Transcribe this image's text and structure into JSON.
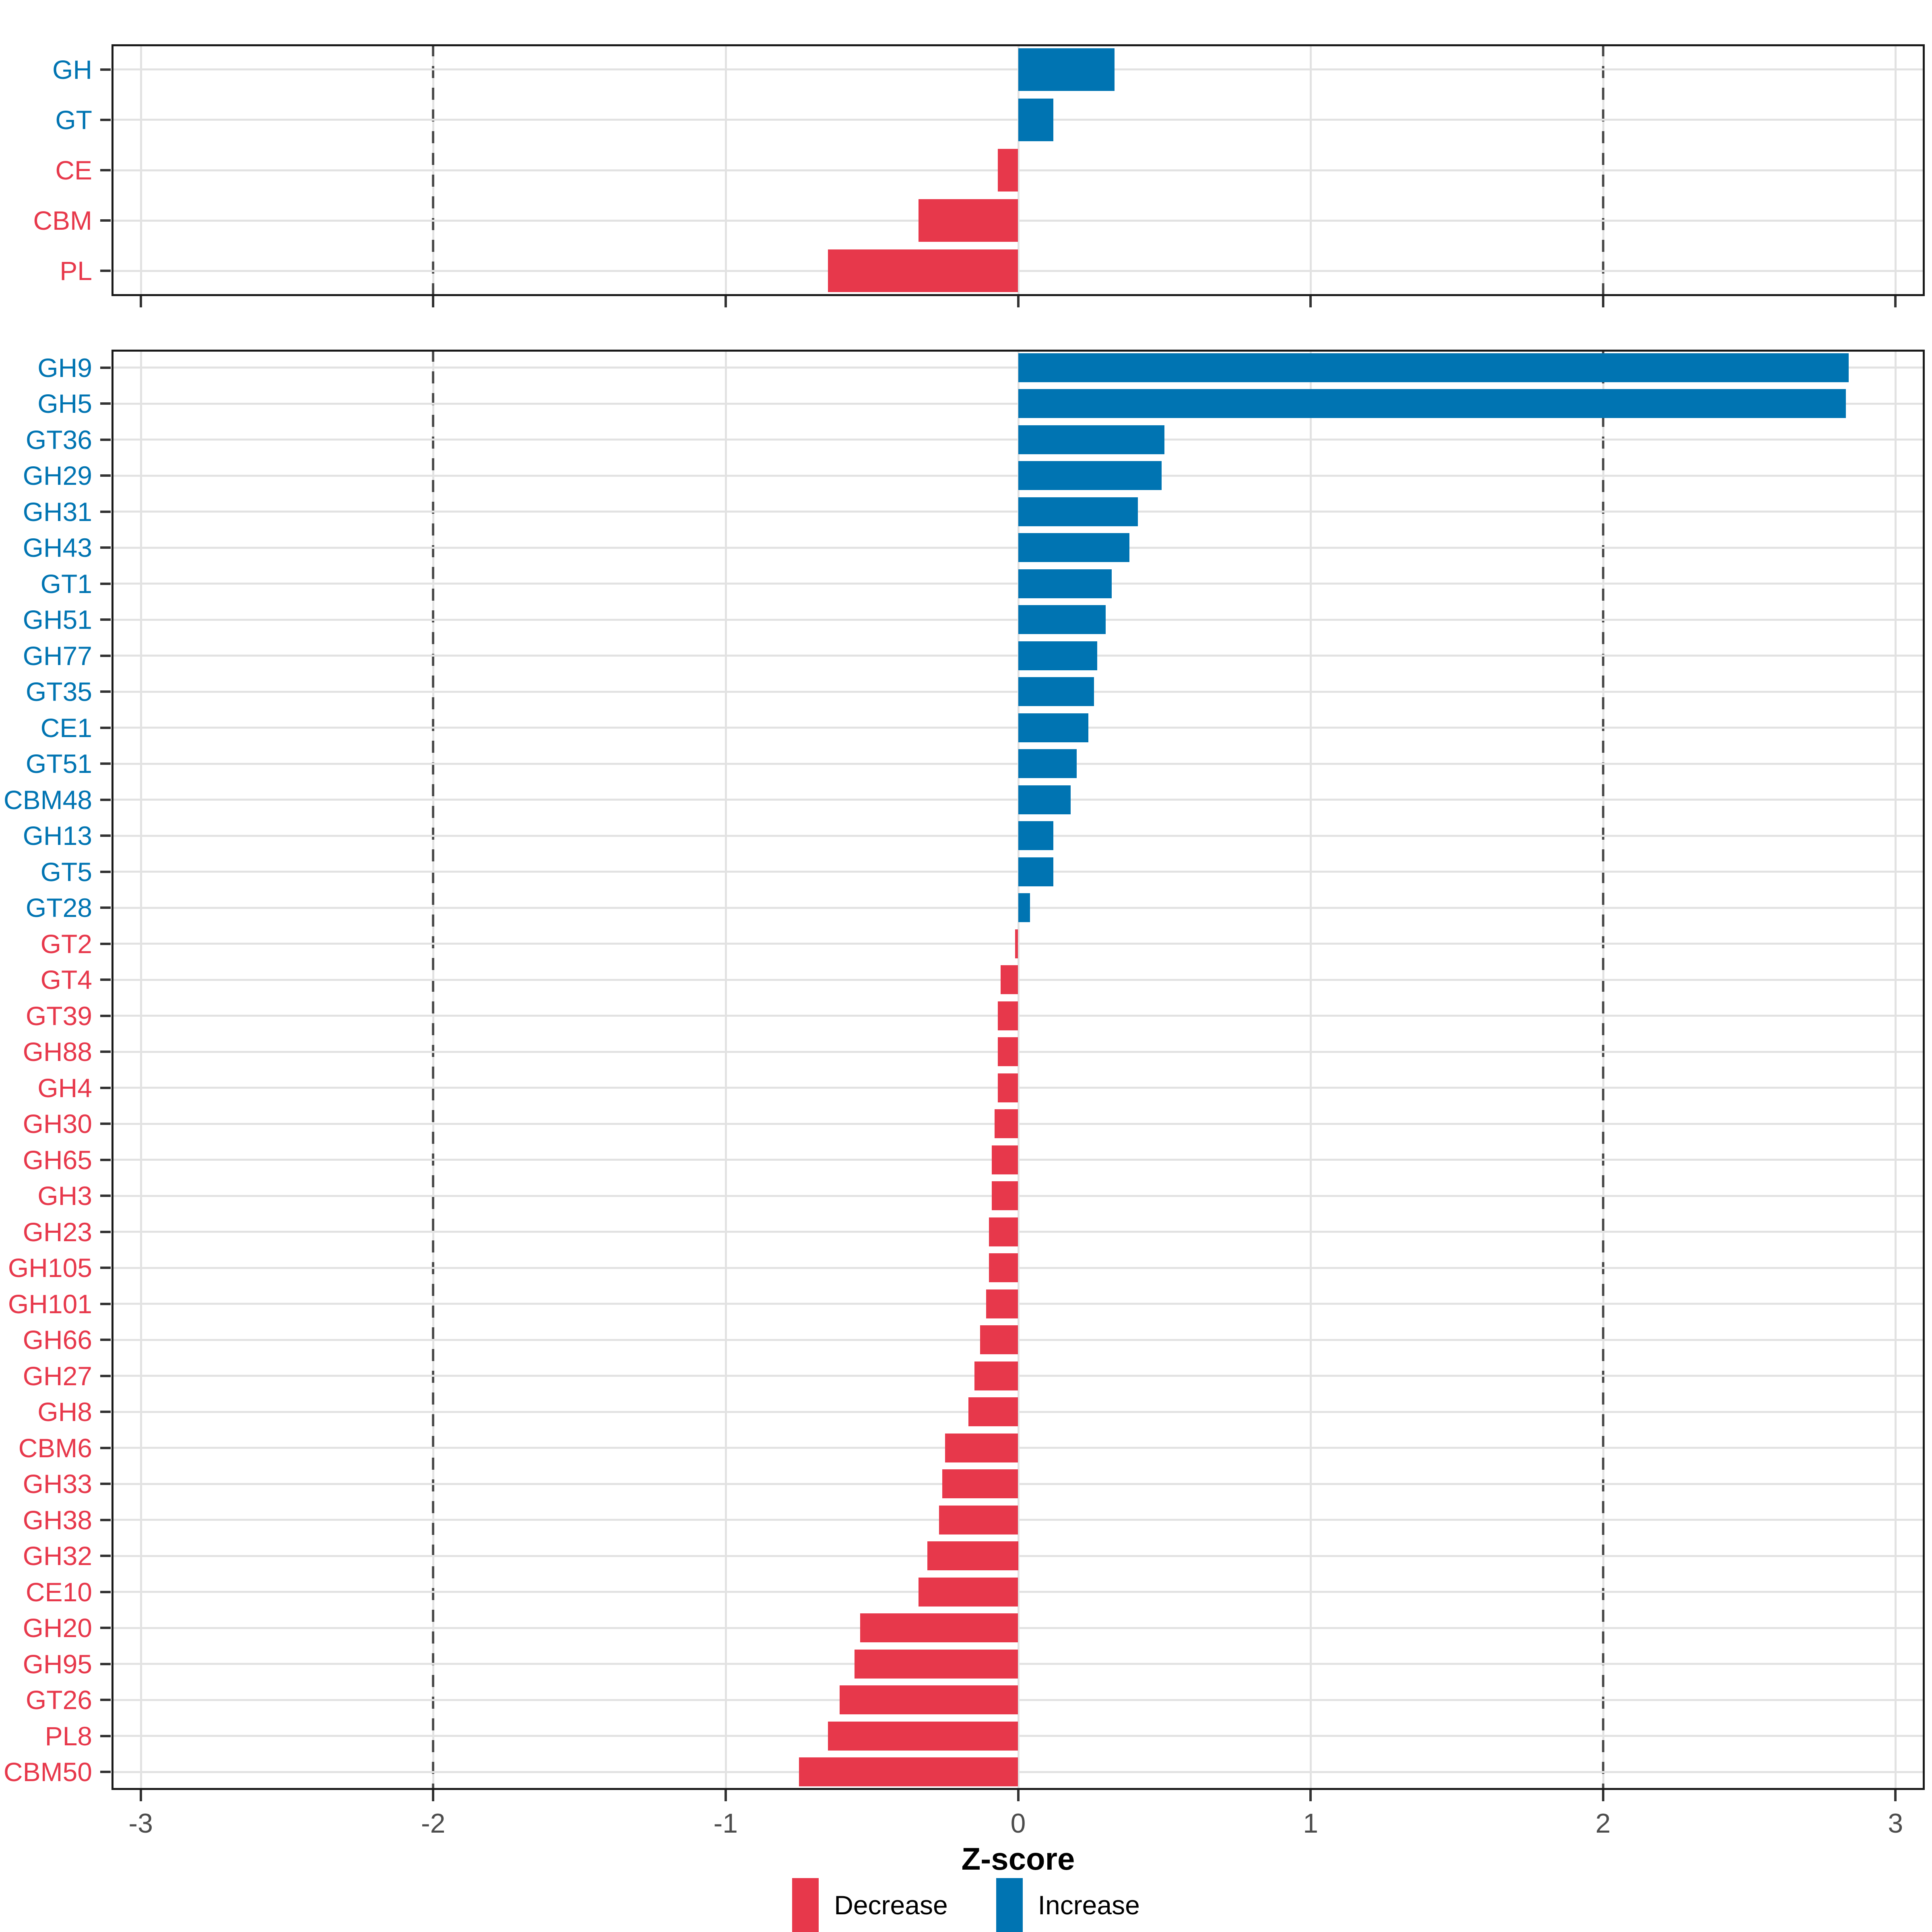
{
  "axis": {
    "label": "Z-score",
    "ticks": [
      "-3",
      "-2",
      "-1",
      "0",
      "1",
      "2",
      "3"
    ],
    "tick_values": [
      -3,
      -2,
      -1,
      0,
      1,
      2,
      3
    ],
    "xlim": [
      -3.1,
      3.1
    ],
    "threshold_lines": [
      -2,
      2
    ]
  },
  "legend": {
    "items": [
      {
        "label": "Decrease",
        "key": "decrease",
        "color": "#e7384b"
      },
      {
        "label": "Increase",
        "key": "increase",
        "color": "#0074b2"
      }
    ]
  },
  "colors": {
    "increase": "#0074b2",
    "decrease": "#e7384b",
    "grid": "#e2e2e2",
    "dash": "#4d4d4d",
    "axis_text": "#4d4d4d",
    "border": "#1a1a1a",
    "tick": "#333333",
    "background": "#ffffff"
  },
  "chart_data": [
    {
      "type": "bar",
      "orientation": "horizontal",
      "panel_id": "class",
      "title": "",
      "xlabel": "Z-score",
      "xlim": [
        -3.1,
        3.1
      ],
      "grid": true,
      "legend_position": "bottom",
      "categories": [
        "GH",
        "GT",
        "CE",
        "CBM",
        "PL"
      ],
      "values": [
        0.33,
        0.12,
        -0.07,
        -0.34,
        -0.65
      ]
    },
    {
      "type": "bar",
      "orientation": "horizontal",
      "panel_id": "family",
      "title": "",
      "xlabel": "Z-score",
      "xlim": [
        -3.1,
        3.1
      ],
      "grid": true,
      "legend_position": "bottom",
      "categories": [
        "GH9",
        "GH5",
        "GT36",
        "GH29",
        "GH31",
        "GH43",
        "GT1",
        "GH51",
        "GH77",
        "GT35",
        "CE1",
        "GT51",
        "CBM48",
        "GH13",
        "GT5",
        "GT28",
        "GT2",
        "GT4",
        "GT39",
        "GH88",
        "GH4",
        "GH30",
        "GH65",
        "GH3",
        "GH23",
        "GH105",
        "GH101",
        "GH66",
        "GH27",
        "GH8",
        "CBM6",
        "GH33",
        "GH38",
        "GH32",
        "CE10",
        "GH20",
        "GH95",
        "GT26",
        "PL8",
        "CBM50"
      ],
      "values": [
        2.84,
        2.83,
        0.5,
        0.49,
        0.41,
        0.38,
        0.32,
        0.3,
        0.27,
        0.26,
        0.24,
        0.2,
        0.18,
        0.12,
        0.12,
        0.04,
        -0.01,
        -0.06,
        -0.07,
        -0.07,
        -0.07,
        -0.08,
        -0.09,
        -0.09,
        -0.1,
        -0.1,
        -0.11,
        -0.13,
        -0.15,
        -0.17,
        -0.25,
        -0.26,
        -0.27,
        -0.31,
        -0.34,
        -0.54,
        -0.56,
        -0.61,
        -0.65,
        -0.75
      ]
    }
  ]
}
